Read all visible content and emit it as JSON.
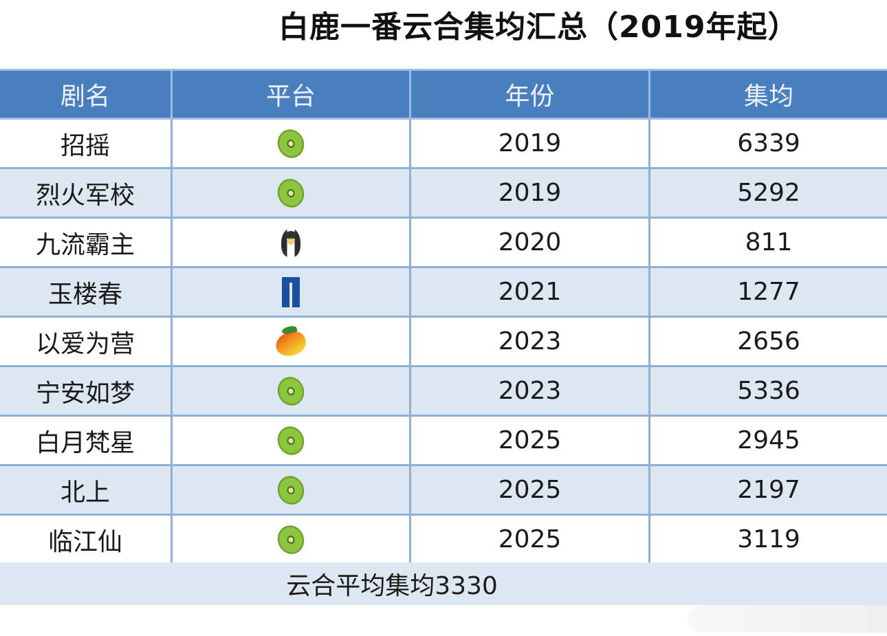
{
  "title": "白鹿一番云合集均汇总（2019年起）",
  "table": {
    "headers": [
      "剧名",
      "平台",
      "年份",
      "集均"
    ],
    "rows": [
      {
        "name": "招摇",
        "platform_icon": "kiwi-icon",
        "platform": "kiwi",
        "year": "2019",
        "avg": "6339"
      },
      {
        "name": "烈火军校",
        "platform_icon": "kiwi-icon",
        "platform": "kiwi",
        "year": "2019",
        "avg": "5292"
      },
      {
        "name": "九流霸主",
        "platform_icon": "penguin-icon",
        "platform": "penguin",
        "year": "2020",
        "avg": "811"
      },
      {
        "name": "玉楼春",
        "platform_icon": "jeans-icon",
        "platform": "jeans",
        "year": "2021",
        "avg": "1277"
      },
      {
        "name": "以爱为营",
        "platform_icon": "mango-icon",
        "platform": "mango",
        "year": "2023",
        "avg": "2656"
      },
      {
        "name": "宁安如梦",
        "platform_icon": "kiwi-icon",
        "platform": "kiwi",
        "year": "2023",
        "avg": "5336"
      },
      {
        "name": "白月梵星",
        "platform_icon": "kiwi-icon",
        "platform": "kiwi",
        "year": "2025",
        "avg": "2945"
      },
      {
        "name": "北上",
        "platform_icon": "kiwi-icon",
        "platform": "kiwi",
        "year": "2025",
        "avg": "2197"
      },
      {
        "name": "临江仙",
        "platform_icon": "kiwi-icon",
        "platform": "kiwi",
        "year": "2025",
        "avg": "3119"
      }
    ],
    "footer": "云合平均集均3330"
  },
  "colors": {
    "header_bg": "#4a7fbf",
    "row_alt_bg": "#dde7f2",
    "grid": "#8fb0d6"
  }
}
